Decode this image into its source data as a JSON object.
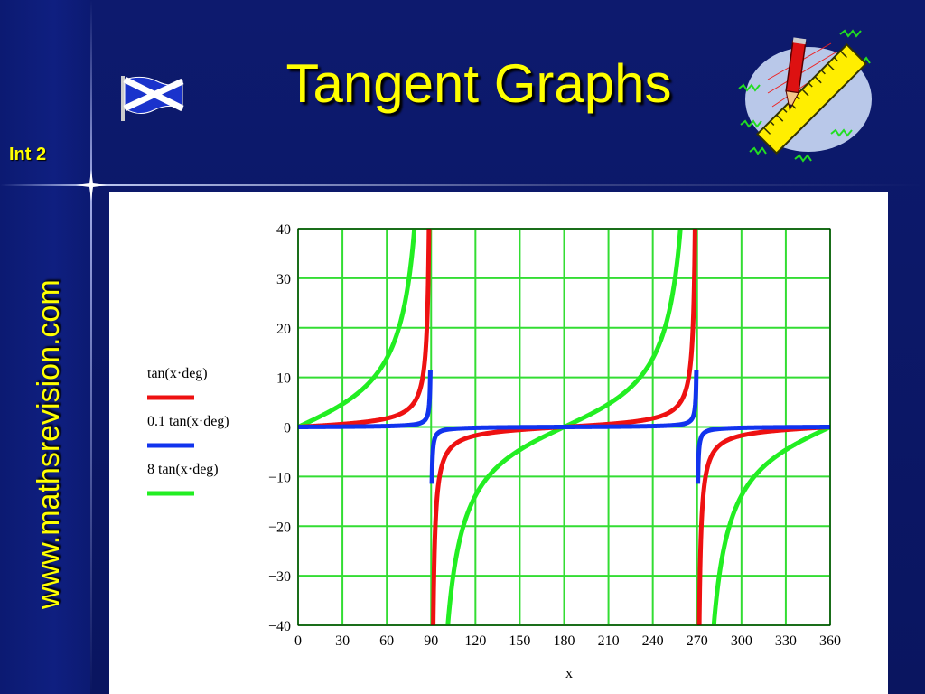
{
  "slide": {
    "title": "Tangent Graphs",
    "level": "Int 2",
    "website": "www.mathsrevision.com"
  },
  "icons": [
    "saltire-flag-icon",
    "pencil-ruler-clipart-icon"
  ],
  "colors": {
    "background": "#0b1660",
    "accent": "#ffff00",
    "grid": "#33dd33"
  },
  "chart_data": {
    "type": "line",
    "title": "",
    "xlabel": "x",
    "ylabel": "",
    "xlim": [
      0,
      360
    ],
    "ylim": [
      -40,
      40
    ],
    "x_ticks": [
      0,
      30,
      60,
      90,
      120,
      150,
      180,
      210,
      240,
      270,
      300,
      330,
      360
    ],
    "y_ticks": [
      40,
      30,
      20,
      10,
      0,
      -10,
      -20,
      -30,
      -40
    ],
    "x_tick_labels": [
      "0",
      "30",
      "60",
      "90",
      "120",
      "150",
      "180",
      "210",
      "240",
      "270",
      "300",
      "330",
      "360"
    ],
    "y_tick_labels": [
      "40",
      "30",
      "20",
      "10",
      "0",
      "−10",
      "−20",
      "−30",
      "−40"
    ],
    "grid": true,
    "legend_position": "left",
    "series": [
      {
        "name": "tan(x·deg)",
        "color": "#ee1111",
        "amplitude": 1
      },
      {
        "name": "0.1 tan(x·deg)",
        "color": "#1133ee",
        "amplitude": 0.1
      },
      {
        "name": "8 tan(x·deg)",
        "color": "#22ee22",
        "amplitude": 8
      }
    ]
  }
}
